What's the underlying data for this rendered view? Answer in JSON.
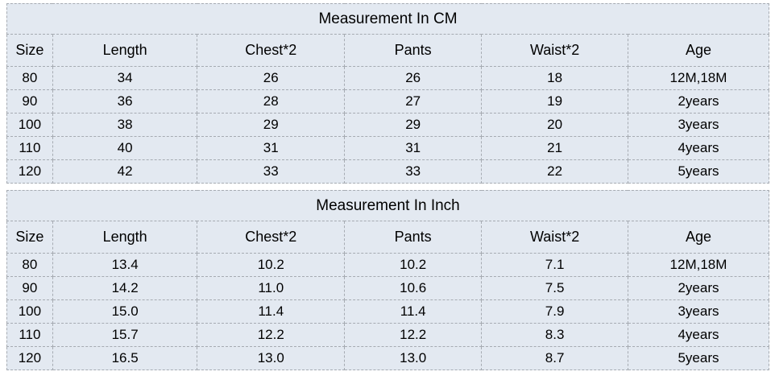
{
  "page": {
    "background": "#ffffff",
    "table_background": "#e3e9f1",
    "border_color": "#a6abb2",
    "text_color": "#000000"
  },
  "chart_data": [
    {
      "type": "table",
      "title": "Measurement In CM",
      "columns": [
        "Size",
        "Length",
        "Chest*2",
        "Pants",
        "Waist*2",
        "Age"
      ],
      "rows": [
        [
          "80",
          "34",
          "26",
          "26",
          "18",
          "12M,18M"
        ],
        [
          "90",
          "36",
          "28",
          "27",
          "19",
          "2years"
        ],
        [
          "100",
          "38",
          "29",
          "29",
          "20",
          "3years"
        ],
        [
          "110",
          "40",
          "31",
          "31",
          "21",
          "4years"
        ],
        [
          "120",
          "42",
          "33",
          "33",
          "22",
          "5years"
        ]
      ]
    },
    {
      "type": "table",
      "title": "Measurement In Inch",
      "columns": [
        "Size",
        "Length",
        "Chest*2",
        "Pants",
        "Waist*2",
        "Age"
      ],
      "rows": [
        [
          "80",
          "13.4",
          "10.2",
          "10.2",
          "7.1",
          "12M,18M"
        ],
        [
          "90",
          "14.2",
          "11.0",
          "10.6",
          "7.5",
          "2years"
        ],
        [
          "100",
          "15.0",
          "11.4",
          "11.4",
          "7.9",
          "3years"
        ],
        [
          "110",
          "15.7",
          "12.2",
          "12.2",
          "8.3",
          "4years"
        ],
        [
          "120",
          "16.5",
          "13.0",
          "13.0",
          "8.7",
          "5years"
        ]
      ]
    }
  ]
}
